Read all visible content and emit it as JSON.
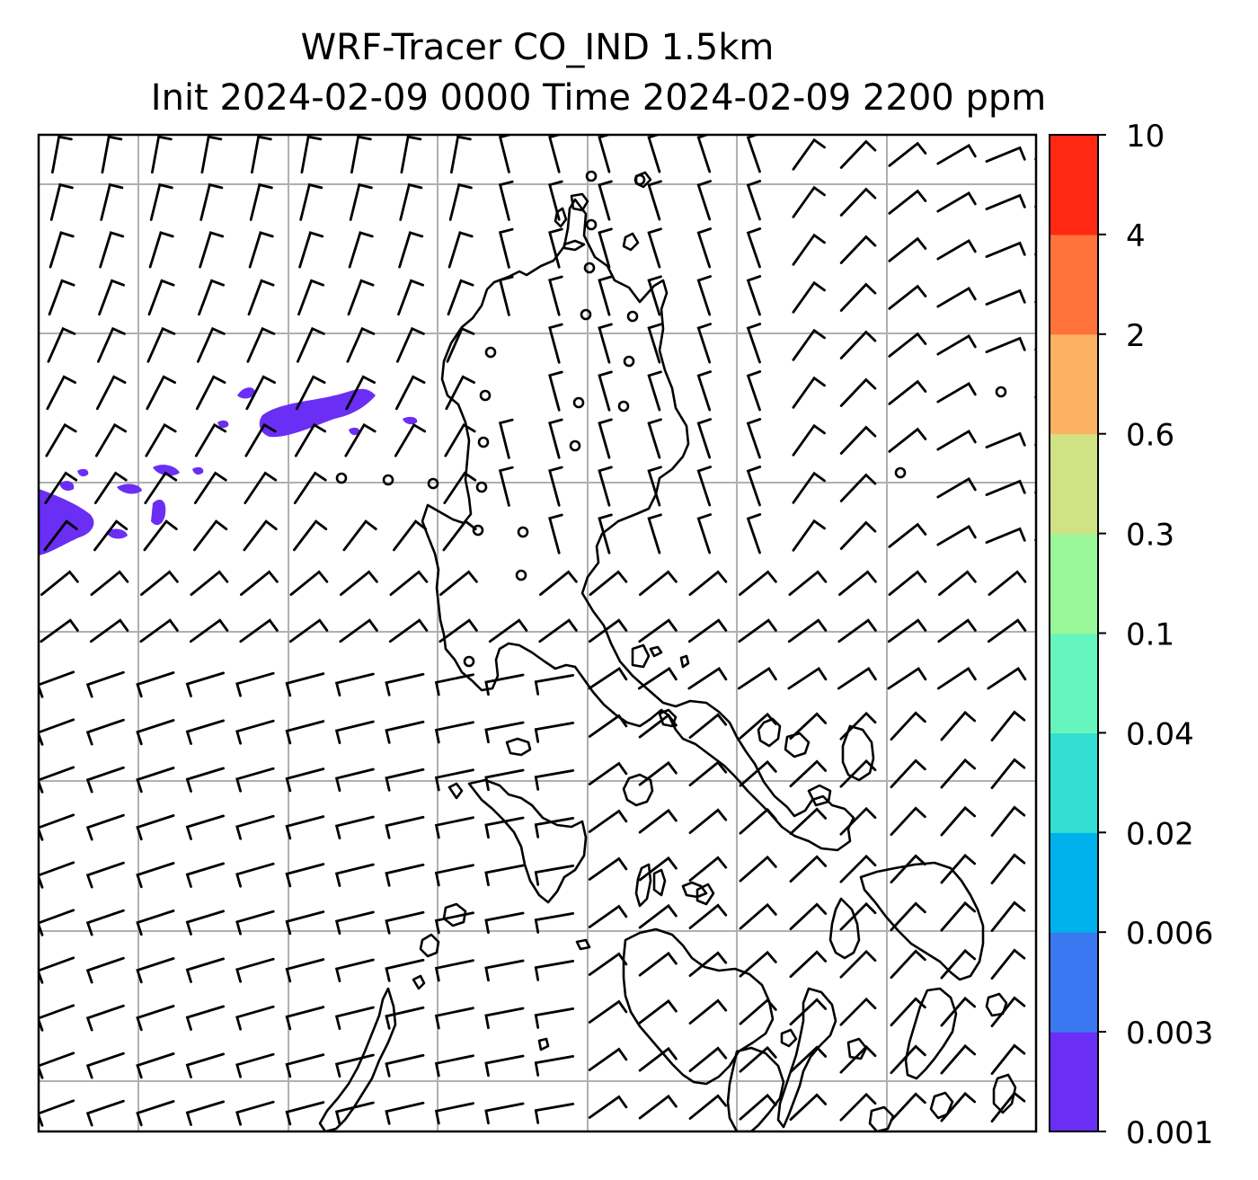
{
  "title": {
    "line1": "WRF-Tracer CO_IND 1.5km",
    "line2": "Init 2024-02-09 0000 Time 2024-02-09 2200 ppm"
  },
  "colorbar": {
    "labels": [
      "0.001",
      "0.003",
      "0.006",
      "0.02",
      "0.04",
      "0.1",
      "0.3",
      "0.6",
      "2",
      "4",
      "10"
    ],
    "colors": [
      "#6a2ef5",
      "#3978f0",
      "#00b2eb",
      "#32dfd2",
      "#66f6bd",
      "#9af79a",
      "#cfe385",
      "#fdb163",
      "#ff7239",
      "#ff2812"
    ]
  },
  "map": {
    "coastline_color": "#000000",
    "gridline_color": "#b0b0b0",
    "wind_barb_color": "#000000",
    "tracer_color": "#6a2ef5"
  }
}
